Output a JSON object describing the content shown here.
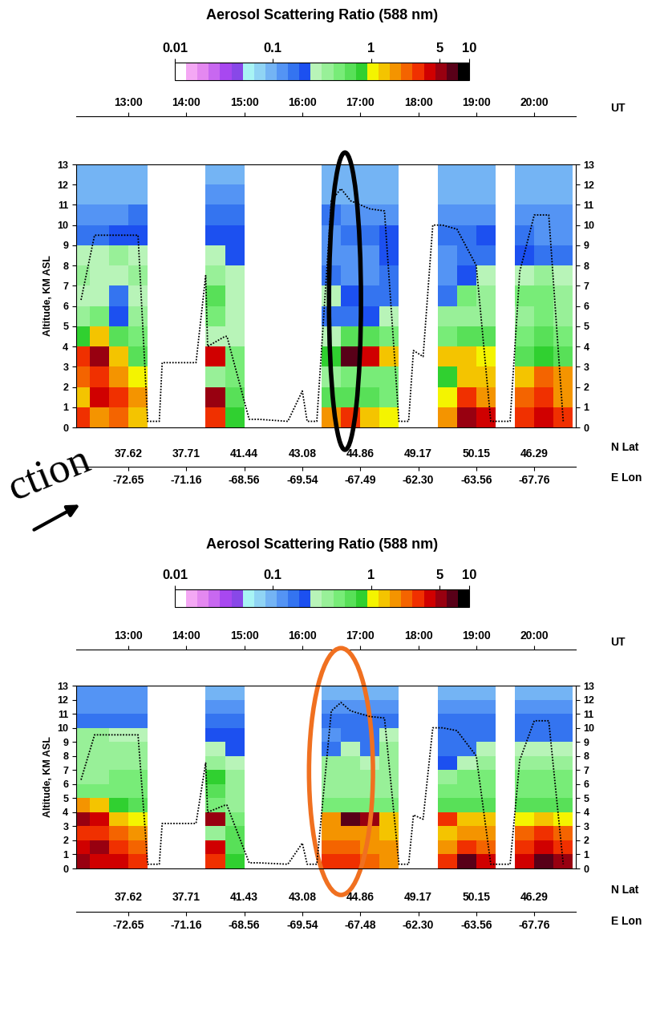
{
  "chart_data": [
    {
      "type": "heatmap",
      "title": "Aerosol Scattering Ratio (588 nm)",
      "x_label": "UT",
      "y_label": "Altitude, KM ASL",
      "lat_label": "N Lat",
      "lon_label": "E Lon",
      "annotation": "ction",
      "xlim": [
        726,
        1243
      ],
      "ylim": [
        0,
        13
      ],
      "xticks": [
        {
          "value": 780,
          "label": "13:00"
        },
        {
          "value": 840,
          "label": "14:00"
        },
        {
          "value": 900,
          "label": "15:00"
        },
        {
          "value": 960,
          "label": "16:00"
        },
        {
          "value": 1020,
          "label": "17:00"
        },
        {
          "value": 1080,
          "label": "18:00"
        },
        {
          "value": 1140,
          "label": "19:00"
        },
        {
          "value": 1200,
          "label": "20:00"
        }
      ],
      "yticks": [
        0,
        1,
        2,
        3,
        4,
        5,
        6,
        7,
        8,
        9,
        10,
        11,
        12,
        13
      ],
      "lat_ticks": [
        {
          "value": 780,
          "label": "37.62"
        },
        {
          "value": 840,
          "label": "37.71"
        },
        {
          "value": 900,
          "label": "41.44"
        },
        {
          "value": 960,
          "label": "43.08"
        },
        {
          "value": 1020,
          "label": "44.86"
        },
        {
          "value": 1080,
          "label": "49.17"
        },
        {
          "value": 1140,
          "label": "50.15"
        },
        {
          "value": 1200,
          "label": "46.29"
        }
      ],
      "lon_ticks": [
        {
          "value": 780,
          "label": "-72.65"
        },
        {
          "value": 840,
          "label": "-71.16"
        },
        {
          "value": 900,
          "label": "-68.56"
        },
        {
          "value": 960,
          "label": "-69.54"
        },
        {
          "value": 1020,
          "label": "-67.49"
        },
        {
          "value": 1080,
          "label": "-62.30"
        },
        {
          "value": 1140,
          "label": "-63.56"
        },
        {
          "value": 1200,
          "label": "-67.76"
        }
      ],
      "colorbar": {
        "range": [
          0.01,
          10
        ],
        "ticks": [
          0.01,
          0.1,
          1,
          5,
          10
        ],
        "log": true
      },
      "x_edges": [
        720,
        740,
        760,
        780,
        800,
        820,
        840,
        860,
        880,
        900,
        920,
        940,
        960,
        980,
        1000,
        1020,
        1040,
        1060,
        1080,
        1100,
        1120,
        1140,
        1160,
        1180,
        1200,
        1220,
        1240
      ],
      "y_edges": [
        0,
        1,
        2,
        3,
        4,
        5,
        6,
        7,
        8,
        9,
        10,
        11,
        12,
        13
      ],
      "profiles": [
        [
          3,
          1.5,
          2.5,
          3,
          0.8,
          0.4,
          0.3,
          0.35,
          0.3,
          0.15,
          0.12,
          0.1,
          0.1
        ],
        [
          2,
          4,
          3,
          5,
          1.5,
          0.5,
          0.25,
          0.3,
          0.3,
          0.15,
          0.12,
          0.1,
          0.1
        ],
        [
          2.5,
          3,
          2,
          1.2,
          0.7,
          0.2,
          0.15,
          0.3,
          0.35,
          0.2,
          0.12,
          0.1,
          0.1
        ],
        [
          1.5,
          2,
          1,
          0.6,
          0.5,
          0.4,
          0.3,
          0.4,
          0.3,
          0.2,
          0.15,
          0.1,
          0.1
        ],
        null,
        null,
        null,
        [
          3,
          5,
          0.4,
          4,
          0.3,
          0.5,
          0.6,
          0.4,
          0.3,
          0.2,
          0.15,
          0.12,
          0.1
        ],
        [
          0.8,
          0.6,
          0.5,
          0.5,
          0.3,
          0.3,
          0.3,
          0.3,
          0.2,
          0.2,
          0.15,
          0.12,
          0.1
        ],
        null,
        null,
        null,
        null,
        [
          2,
          0.6,
          0.4,
          0.8,
          0.3,
          0.15,
          0.3,
          0.15,
          0.12,
          0.12,
          0.15,
          0.1,
          0.1
        ],
        [
          3,
          0.7,
          0.5,
          6,
          0.6,
          0.15,
          0.2,
          0.12,
          0.12,
          0.15,
          0.12,
          0.1,
          0.1
        ],
        [
          1.5,
          0.6,
          0.5,
          4,
          0.6,
          0.2,
          0.15,
          0.12,
          0.12,
          0.15,
          0.12,
          0.1,
          0.1
        ],
        [
          1,
          0.5,
          0.5,
          1.5,
          0.5,
          0.3,
          0.15,
          0.15,
          0.2,
          0.2,
          0.12,
          0.1,
          0.1
        ],
        null,
        null,
        [
          2,
          1,
          0.8,
          1.5,
          0.5,
          0.4,
          0.15,
          0.12,
          0.12,
          0.15,
          0.12,
          0.1,
          0.1
        ],
        [
          5,
          3,
          1.5,
          1.2,
          0.6,
          0.4,
          0.5,
          0.2,
          0.15,
          0.15,
          0.12,
          0.1,
          0.1
        ],
        [
          4,
          2,
          1.5,
          1,
          0.6,
          0.4,
          0.4,
          0.3,
          0.15,
          0.2,
          0.12,
          0.1,
          0.1
        ],
        null,
        [
          3,
          2.5,
          1.5,
          0.6,
          0.5,
          0.4,
          0.5,
          0.3,
          0.2,
          0.15,
          0.12,
          0.1,
          0.1
        ],
        [
          4,
          3,
          2.5,
          0.8,
          0.6,
          0.5,
          0.5,
          0.4,
          0.15,
          0.12,
          0.12,
          0.1,
          0.1
        ],
        [
          3,
          2,
          2,
          0.7,
          0.5,
          0.4,
          0.4,
          0.3,
          0.15,
          0.12,
          0.12,
          0.1,
          0.1
        ]
      ],
      "flight_altitude": {
        "x": [
          731,
          745,
          790,
          800,
          812,
          815,
          850,
          860,
          862,
          880,
          882,
          905,
          915,
          945,
          960,
          965,
          975,
          990,
          1000,
          1010,
          1030,
          1045,
          1060,
          1070,
          1075,
          1085,
          1095,
          1105,
          1120,
          1140,
          1155,
          1165,
          1175,
          1185,
          1200,
          1215,
          1230
        ],
        "values": [
          6.3,
          9.5,
          9.5,
          0.3,
          0.3,
          3.2,
          3.2,
          7.5,
          4.0,
          4.5,
          4.5,
          0.4,
          0.4,
          0.3,
          1.8,
          0.3,
          0.3,
          11.2,
          11.8,
          11.2,
          10.8,
          10.7,
          0.3,
          0.3,
          3.8,
          3.5,
          10.0,
          10.0,
          9.8,
          8.0,
          0.3,
          0.3,
          0.3,
          7.7,
          10.5,
          10.5,
          0.3
        ]
      }
    },
    {
      "type": "heatmap",
      "title": "Aerosol Scattering Ratio (588 nm)",
      "x_label": "UT",
      "y_label": "Altitude, KM ASL",
      "lat_label": "N Lat",
      "lon_label": "E Lon",
      "xlim": [
        726,
        1243
      ],
      "ylim": [
        0,
        13
      ],
      "xticks": [
        {
          "value": 780,
          "label": "13:00"
        },
        {
          "value": 840,
          "label": "14:00"
        },
        {
          "value": 900,
          "label": "15:00"
        },
        {
          "value": 960,
          "label": "16:00"
        },
        {
          "value": 1020,
          "label": "17:00"
        },
        {
          "value": 1080,
          "label": "18:00"
        },
        {
          "value": 1140,
          "label": "19:00"
        },
        {
          "value": 1200,
          "label": "20:00"
        }
      ],
      "yticks": [
        0,
        1,
        2,
        3,
        4,
        5,
        6,
        7,
        8,
        9,
        10,
        11,
        12,
        13
      ],
      "lat_ticks": [
        {
          "value": 780,
          "label": "37.62"
        },
        {
          "value": 840,
          "label": "37.71"
        },
        {
          "value": 900,
          "label": "41.43"
        },
        {
          "value": 960,
          "label": "43.08"
        },
        {
          "value": 1020,
          "label": "44.86"
        },
        {
          "value": 1080,
          "label": "49.17"
        },
        {
          "value": 1140,
          "label": "50.15"
        },
        {
          "value": 1200,
          "label": "46.29"
        }
      ],
      "lon_ticks": [
        {
          "value": 780,
          "label": "-72.65"
        },
        {
          "value": 840,
          "label": "-71.16"
        },
        {
          "value": 900,
          "label": "-68.56"
        },
        {
          "value": 960,
          "label": "-69.54"
        },
        {
          "value": 1020,
          "label": "-67.48"
        },
        {
          "value": 1080,
          "label": "-62.30"
        },
        {
          "value": 1140,
          "label": "-63.56"
        },
        {
          "value": 1200,
          "label": "-67.76"
        }
      ],
      "colorbar": {
        "range": [
          0.01,
          10
        ],
        "ticks": [
          0.01,
          0.1,
          1,
          5,
          10
        ],
        "log": true
      },
      "x_edges": [
        720,
        740,
        760,
        780,
        800,
        820,
        840,
        860,
        880,
        900,
        920,
        940,
        960,
        980,
        1000,
        1020,
        1040,
        1060,
        1080,
        1100,
        1120,
        1140,
        1160,
        1180,
        1200,
        1220,
        1240
      ],
      "y_edges": [
        0,
        1,
        2,
        3,
        4,
        5,
        6,
        7,
        8,
        9,
        10,
        11,
        12,
        13
      ],
      "profiles": [
        [
          5,
          4,
          3,
          5,
          2,
          0.5,
          0.4,
          0.4,
          0.4,
          0.4,
          0.15,
          0.12,
          0.12
        ],
        [
          4,
          5,
          3,
          4,
          1.5,
          0.5,
          0.4,
          0.4,
          0.4,
          0.4,
          0.15,
          0.12,
          0.12
        ],
        [
          4,
          3,
          2.5,
          1.5,
          0.8,
          0.5,
          0.5,
          0.4,
          0.4,
          0.3,
          0.15,
          0.12,
          0.12
        ],
        [
          3,
          2.5,
          2,
          1,
          0.6,
          0.5,
          0.5,
          0.4,
          0.4,
          0.3,
          0.15,
          0.12,
          0.12
        ],
        null,
        null,
        null,
        [
          3,
          4,
          0.4,
          5,
          0.5,
          0.6,
          0.8,
          0.4,
          0.3,
          0.2,
          0.15,
          0.12,
          0.1
        ],
        [
          0.8,
          0.6,
          0.6,
          0.5,
          0.4,
          0.4,
          0.4,
          0.3,
          0.2,
          0.2,
          0.15,
          0.12,
          0.1
        ],
        null,
        null,
        null,
        null,
        [
          3,
          2.5,
          2,
          2,
          0.5,
          0.4,
          0.4,
          0.4,
          0.15,
          0.12,
          0.15,
          0.12,
          0.1
        ],
        [
          3,
          2.5,
          2,
          6,
          0.5,
          0.4,
          0.4,
          0.4,
          0.3,
          0.15,
          0.15,
          0.12,
          0.1
        ],
        [
          2.5,
          2,
          2,
          5,
          0.5,
          0.4,
          0.4,
          0.3,
          0.15,
          0.15,
          0.15,
          0.12,
          0.1
        ],
        [
          2,
          2,
          1.5,
          1.5,
          0.5,
          0.4,
          0.4,
          0.4,
          0.4,
          0.3,
          0.15,
          0.12,
          0.1
        ],
        null,
        null,
        [
          3,
          2,
          1.5,
          3,
          0.6,
          0.5,
          0.4,
          0.2,
          0.15,
          0.15,
          0.15,
          0.12,
          0.1
        ],
        [
          6,
          3,
          2,
          1.5,
          0.6,
          0.5,
          0.5,
          0.3,
          0.15,
          0.15,
          0.15,
          0.12,
          0.1
        ],
        [
          4,
          2.5,
          2,
          1.5,
          0.6,
          0.5,
          0.5,
          0.4,
          0.3,
          0.15,
          0.15,
          0.12,
          0.1
        ],
        null,
        [
          4,
          3,
          2.5,
          1,
          0.6,
          0.5,
          0.5,
          0.4,
          0.3,
          0.15,
          0.15,
          0.12,
          0.1
        ],
        [
          6,
          4,
          3,
          1.2,
          0.6,
          0.5,
          0.5,
          0.4,
          0.3,
          0.15,
          0.15,
          0.12,
          0.1
        ],
        [
          5,
          3,
          2.5,
          1,
          0.6,
          0.5,
          0.5,
          0.4,
          0.3,
          0.15,
          0.15,
          0.12,
          0.1
        ]
      ],
      "flight_altitude": {
        "x": [
          731,
          745,
          790,
          800,
          812,
          815,
          850,
          860,
          862,
          880,
          882,
          905,
          915,
          945,
          960,
          965,
          975,
          990,
          1000,
          1010,
          1030,
          1045,
          1060,
          1070,
          1075,
          1085,
          1095,
          1105,
          1120,
          1140,
          1155,
          1165,
          1175,
          1185,
          1200,
          1215,
          1230
        ],
        "values": [
          6.3,
          9.5,
          9.5,
          0.3,
          0.3,
          3.2,
          3.2,
          7.5,
          4.0,
          4.5,
          4.5,
          0.4,
          0.4,
          0.3,
          1.8,
          0.3,
          0.3,
          11.2,
          11.8,
          11.2,
          10.8,
          10.7,
          0.3,
          0.3,
          3.8,
          3.5,
          10.0,
          10.0,
          9.8,
          8.0,
          0.3,
          0.3,
          0.3,
          7.7,
          10.5,
          10.5,
          0.3
        ]
      }
    }
  ]
}
